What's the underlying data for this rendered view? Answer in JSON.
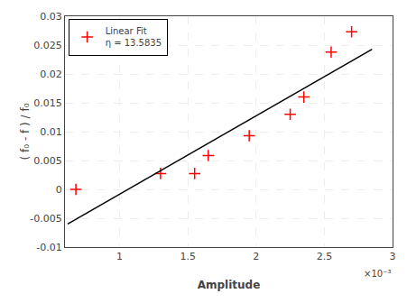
{
  "chart_data": {
    "type": "scatter",
    "x_label": "Amplitude",
    "y_label": "( f₀ - f ) / f₀",
    "annotations": [
      "×10⁻³"
    ],
    "series": [
      {
        "name": "Linear Fit\nη = 13.5835",
        "type": "scatter",
        "color": "#ff0000",
        "marker": "+",
        "x": [
          0.00068,
          0.0013,
          0.00155,
          0.00165,
          0.00195,
          0.00225,
          0.00235,
          0.00255,
          0.0027
        ],
        "values": [
          0.0,
          0.00275,
          0.00275,
          0.00585,
          0.0093,
          0.013,
          0.016,
          0.0238,
          0.0273
        ]
      },
      {
        "type": "line",
        "color": "#000000",
        "x": [
          0.00062,
          0.00285
        ],
        "values": [
          -0.00601133,
          0.02427988
        ]
      }
    ],
    "xlim": [
      0.0006,
      0.003
    ],
    "ylim": [
      -0.01,
      0.03
    ],
    "xticks": [
      {
        "value": 0.001,
        "label": "1"
      },
      {
        "value": 0.0015,
        "label": "1.5"
      },
      {
        "value": 0.002,
        "label": "2"
      },
      {
        "value": 0.0025,
        "label": "2.5"
      },
      {
        "value": 0.003,
        "label": "3"
      }
    ],
    "yticks": [
      -0.01,
      -0.005,
      0,
      0.005,
      0.01,
      0.015,
      0.02,
      0.025,
      0.03
    ],
    "grid": true,
    "legend": "upper left"
  }
}
